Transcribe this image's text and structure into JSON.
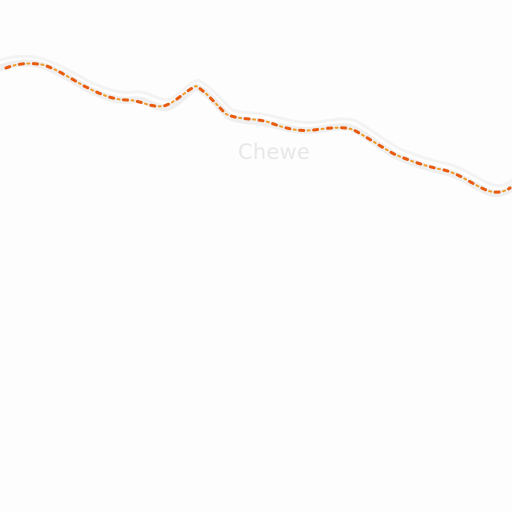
{
  "map": {
    "place_label": "Chewe",
    "colors": {
      "background": "#fdfdfd",
      "border_casing": "#efefef",
      "boundary_dash": "#e8590c",
      "boundary_dash_alt": "#d9480f",
      "label": "#e7e7e7"
    },
    "features": [
      {
        "type": "administrative-boundary",
        "style": "dashed-orange"
      }
    ]
  }
}
